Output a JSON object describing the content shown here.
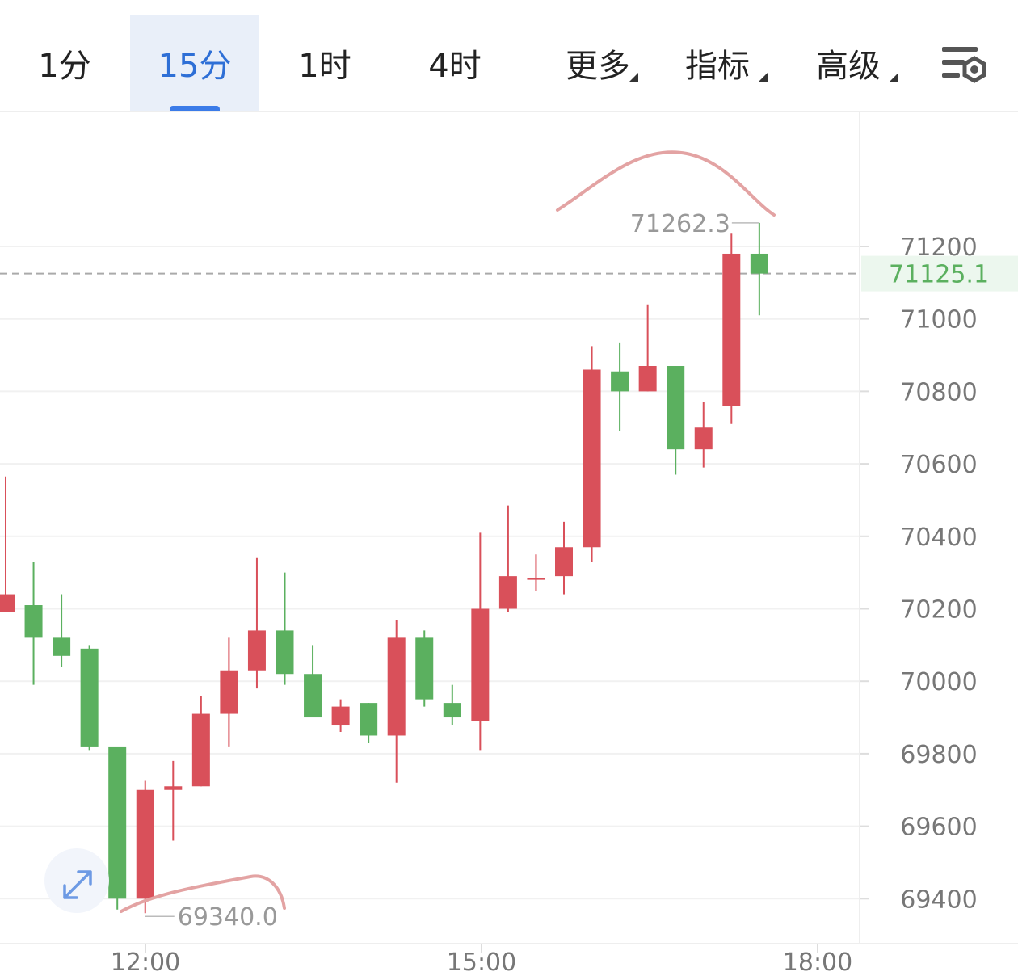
{
  "toolbar": {
    "tabs": [
      {
        "label": "1分",
        "active": false,
        "dropdown": false
      },
      {
        "label": "15分",
        "active": true,
        "dropdown": false
      },
      {
        "label": "1时",
        "active": false,
        "dropdown": false
      },
      {
        "label": "4时",
        "active": false,
        "dropdown": false
      },
      {
        "label": "更多",
        "active": false,
        "dropdown": true
      },
      {
        "label": "指标",
        "active": false,
        "dropdown": true
      },
      {
        "label": "高级",
        "active": false,
        "dropdown": true
      }
    ],
    "settings_icon": "chart-settings-icon"
  },
  "colors": {
    "up": "#5bb05f",
    "down": "#d9505a",
    "accent": "#2e6fd6",
    "price_line": "#5bb05f"
  },
  "chart_data": {
    "type": "candlestick",
    "x_ticks": [
      "12:00",
      "15:00",
      "18:00"
    ],
    "y_ticks": [
      71200,
      71000,
      70800,
      70600,
      70400,
      70200,
      70000,
      69800,
      69600,
      69400
    ],
    "ylim": [
      69350,
      71550
    ],
    "current_price": "71125.1",
    "high_label": "71262.3",
    "low_label": "69340.0",
    "grid": true,
    "candles": [
      {
        "o": 70240,
        "h": 70565,
        "c": 70190,
        "l": 70190
      },
      {
        "o": 70120,
        "h": 70330,
        "c": 70210,
        "l": 69990
      },
      {
        "o": 70070,
        "h": 70240,
        "c": 70120,
        "l": 70040
      },
      {
        "o": 69820,
        "h": 70100,
        "c": 70090,
        "l": 69810
      },
      {
        "o": 69400,
        "h": 69810,
        "c": 69820,
        "l": 69370
      },
      {
        "o": 69700,
        "h": 69725,
        "c": 69400,
        "l": 69360
      },
      {
        "o": 69710,
        "h": 69780,
        "c": 69700,
        "l": 69560
      },
      {
        "o": 69910,
        "h": 69960,
        "c": 69710,
        "l": 69710
      },
      {
        "o": 70030,
        "h": 70120,
        "c": 69910,
        "l": 69820
      },
      {
        "o": 70140,
        "h": 70340,
        "c": 70030,
        "l": 69980
      },
      {
        "o": 70020,
        "h": 70300,
        "c": 70140,
        "l": 69990
      },
      {
        "o": 69900,
        "h": 70100,
        "c": 70020,
        "l": 69900
      },
      {
        "o": 69930,
        "h": 69950,
        "c": 69880,
        "l": 69860
      },
      {
        "o": 69850,
        "h": 69940,
        "c": 69940,
        "l": 69830
      },
      {
        "o": 70120,
        "h": 70170,
        "c": 69850,
        "l": 69720
      },
      {
        "o": 69950,
        "h": 70140,
        "c": 70120,
        "l": 69930
      },
      {
        "o": 69900,
        "h": 69990,
        "c": 69940,
        "l": 69880
      },
      {
        "o": 70200,
        "h": 70410,
        "c": 69890,
        "l": 69810
      },
      {
        "o": 70290,
        "h": 70485,
        "c": 70200,
        "l": 70190
      },
      {
        "o": 70285,
        "h": 70350,
        "c": 70280,
        "l": 70250
      },
      {
        "o": 70370,
        "h": 70440,
        "c": 70290,
        "l": 70240
      },
      {
        "o": 70860,
        "h": 70925,
        "c": 70370,
        "l": 70330
      },
      {
        "o": 70800,
        "h": 70935,
        "c": 70855,
        "l": 70690
      },
      {
        "o": 70870,
        "h": 71040,
        "c": 70800,
        "l": 70800
      },
      {
        "o": 70640,
        "h": 70870,
        "c": 70870,
        "l": 70570
      },
      {
        "o": 70700,
        "h": 70770,
        "c": 70640,
        "l": 70590
      },
      {
        "o": 71180,
        "h": 71235,
        "c": 70760,
        "l": 70710
      },
      {
        "o": 71125,
        "h": 71265,
        "c": 71180,
        "l": 71010
      }
    ]
  }
}
